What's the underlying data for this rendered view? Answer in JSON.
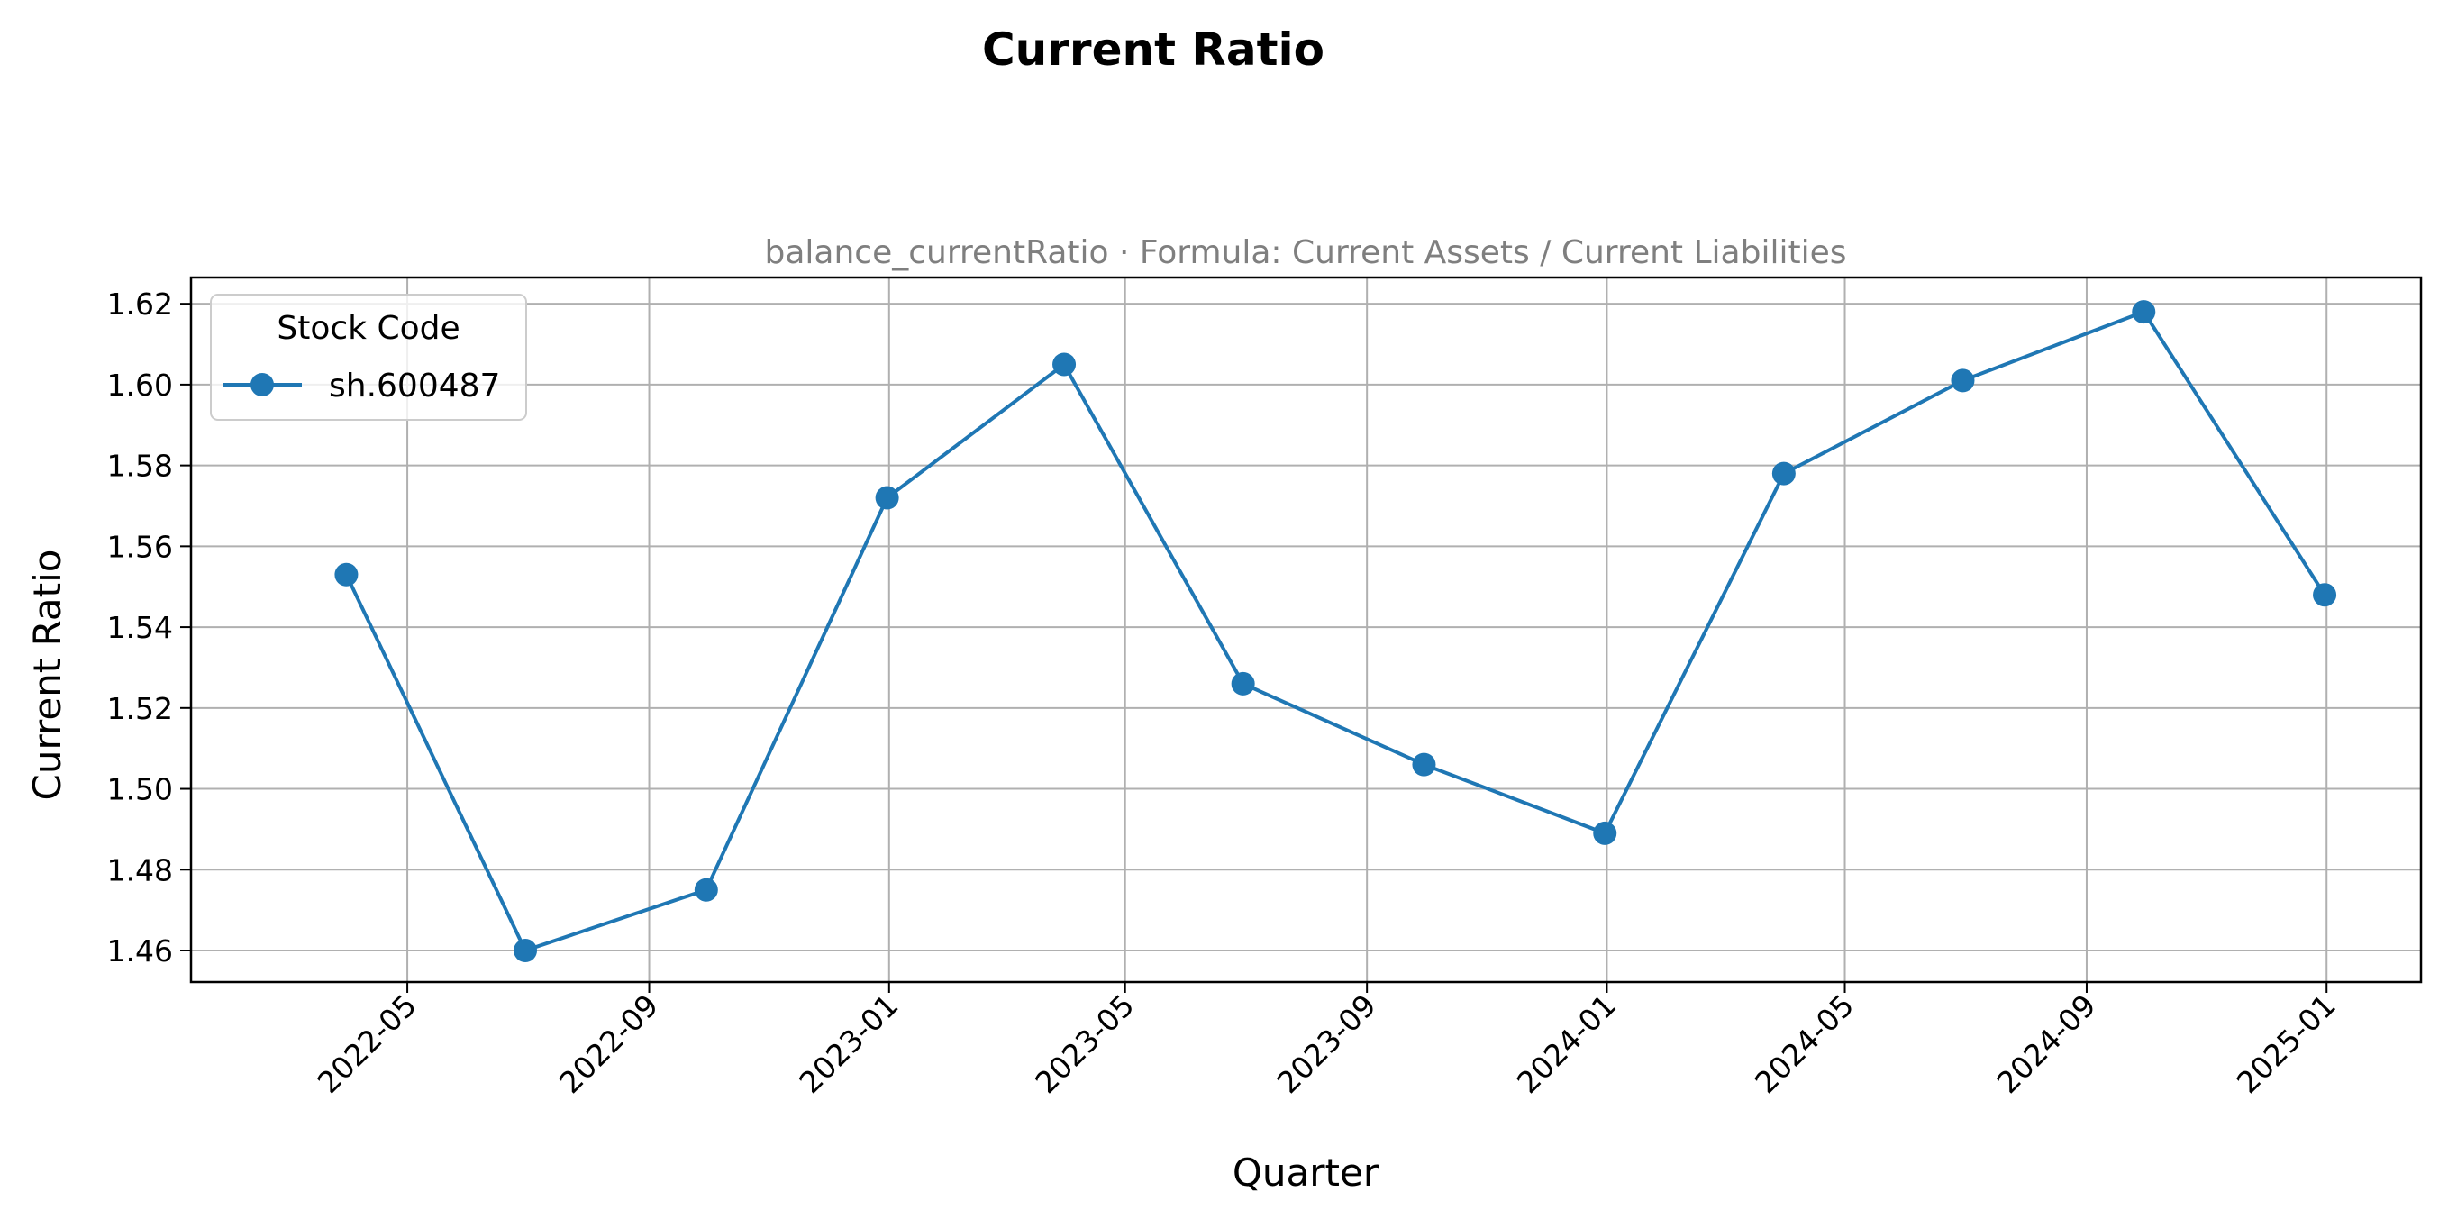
{
  "chart_data": {
    "type": "line",
    "title": "Current Ratio",
    "subtitle": "balance_currentRatio · Formula: Current Assets / Current Liabilities",
    "xlabel": "Quarter",
    "ylabel": "Current Ratio",
    "x_tick_labels": [
      "2022-05",
      "2022-09",
      "2023-01",
      "2023-05",
      "2023-09",
      "2024-01",
      "2024-05",
      "2024-09",
      "2025-01"
    ],
    "x_ticks": [
      "2022-05-01",
      "2022-09-01",
      "2023-01-01",
      "2023-05-01",
      "2023-09-01",
      "2024-01-01",
      "2024-05-01",
      "2024-09-01",
      "2025-01-01"
    ],
    "x_range": [
      "2022-01-11",
      "2025-02-18"
    ],
    "y_ticks": [
      1.46,
      1.48,
      1.5,
      1.52,
      1.54,
      1.56,
      1.58,
      1.6,
      1.62
    ],
    "y_tick_labels": [
      "1.46",
      "1.48",
      "1.50",
      "1.52",
      "1.54",
      "1.56",
      "1.58",
      "1.60",
      "1.62"
    ],
    "ylim": [
      1.4522,
      1.6265
    ],
    "grid": true,
    "legend": {
      "title": "Stock Code",
      "position": "top-left"
    },
    "series": [
      {
        "name": "sh.600487",
        "color": "#1f77b4",
        "marker": "circle",
        "x": [
          "2022-03-31",
          "2022-06-30",
          "2022-09-30",
          "2022-12-31",
          "2023-03-31",
          "2023-06-30",
          "2023-09-30",
          "2023-12-31",
          "2024-03-31",
          "2024-06-30",
          "2024-09-30",
          "2024-12-31"
        ],
        "values": [
          1.553,
          1.46,
          1.475,
          1.572,
          1.605,
          1.526,
          1.506,
          1.489,
          1.578,
          1.601,
          1.618,
          1.548
        ]
      }
    ]
  }
}
